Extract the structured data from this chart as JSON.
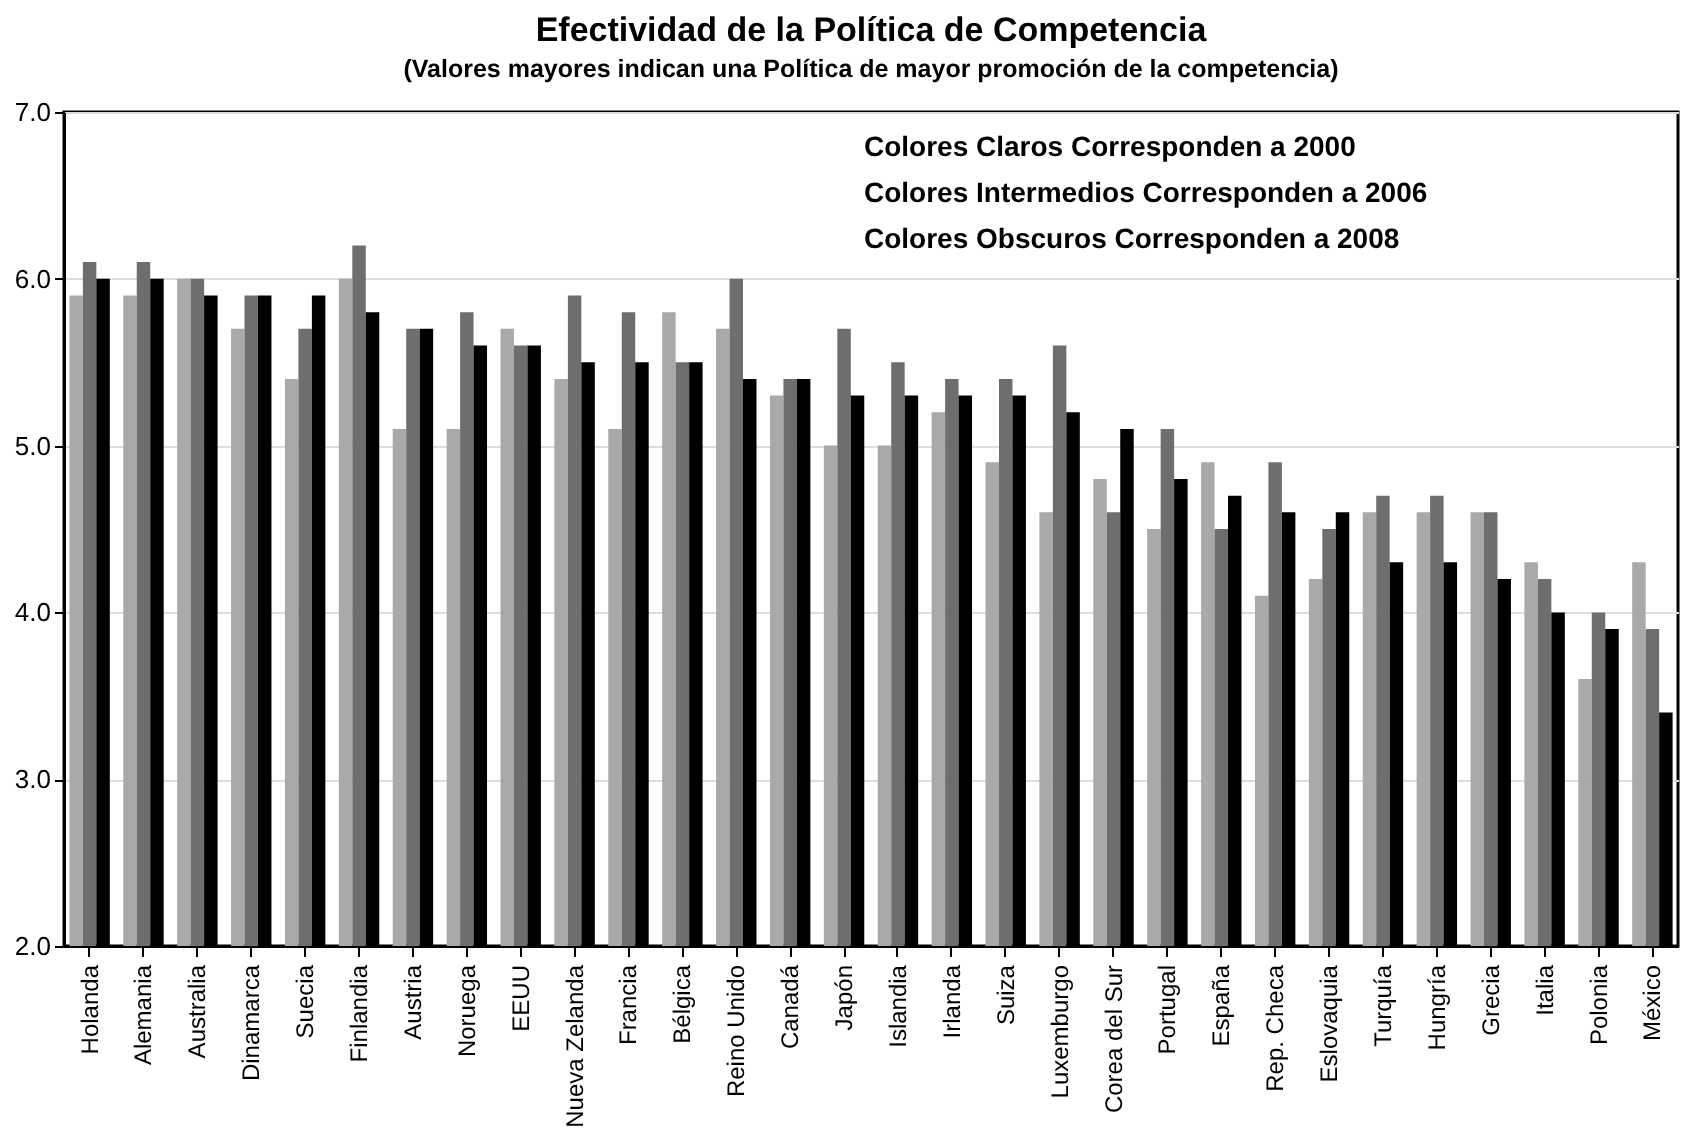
{
  "chart_data": {
    "type": "bar",
    "title": "Efectividad de la Política de Competencia",
    "subtitle": "(Valores mayores indican una Política de mayor promoción de la competencia)",
    "categories": [
      "Holanda",
      "Alemania",
      "Australia",
      "Dinamarca",
      "Suecia",
      "Finlandia",
      "Austria",
      "Noruega",
      "EEUU",
      "Nueva Zelanda",
      "Francia",
      "Bélgica",
      "Reino Unido",
      "Canadá",
      "Japón",
      "Islandia",
      "Irlanda",
      "Suiza",
      "Luxemburgo",
      "Corea del Sur",
      "Portugal",
      "España",
      "Rep. Checa",
      "Eslovaquia",
      "Turquía",
      "Hungría",
      "Grecia",
      "Italia",
      "Polonia",
      "México"
    ],
    "series": [
      {
        "color": "#a9a9a9",
        "values": [
          5.9,
          5.9,
          6.0,
          5.7,
          5.4,
          6.0,
          5.1,
          5.1,
          5.7,
          5.4,
          5.1,
          5.8,
          5.7,
          5.3,
          5.0,
          5.0,
          5.2,
          4.9,
          4.6,
          4.8,
          4.5,
          4.9,
          4.1,
          4.2,
          4.6,
          4.6,
          4.6,
          4.3,
          3.6,
          4.3
        ]
      },
      {
        "color": "#6e6e6e",
        "values": [
          6.1,
          6.1,
          6.0,
          5.9,
          5.7,
          6.2,
          5.7,
          5.8,
          5.6,
          5.9,
          5.8,
          5.5,
          6.0,
          5.4,
          5.7,
          5.5,
          5.4,
          5.4,
          5.6,
          4.6,
          5.1,
          4.5,
          4.9,
          4.5,
          4.7,
          4.7,
          4.6,
          4.2,
          4.0,
          3.9
        ]
      },
      {
        "color": "#000000",
        "values": [
          6.0,
          6.0,
          5.9,
          5.9,
          5.9,
          5.8,
          5.7,
          5.6,
          5.6,
          5.5,
          5.5,
          5.5,
          5.4,
          5.4,
          5.3,
          5.3,
          5.3,
          5.3,
          5.2,
          5.1,
          4.8,
          4.7,
          4.6,
          4.6,
          4.3,
          4.3,
          4.2,
          4.0,
          3.9,
          3.4
        ]
      }
    ],
    "annotations": [
      "Colores Claros Corresponden a 2000",
      "Colores Intermedios Corresponden a 2006",
      "Colores Obscuros Corresponden a 2008"
    ],
    "ylim": [
      2.0,
      7.0
    ],
    "yticks": [
      {
        "value": 2,
        "label": "2.0"
      },
      {
        "value": 3,
        "label": "3.0"
      },
      {
        "value": 4,
        "label": "4.0"
      },
      {
        "value": 5,
        "label": "5.0"
      },
      {
        "value": 6,
        "label": "6.0"
      },
      {
        "value": 7,
        "label": "7.0"
      }
    ],
    "grid": "y",
    "legend": false
  }
}
